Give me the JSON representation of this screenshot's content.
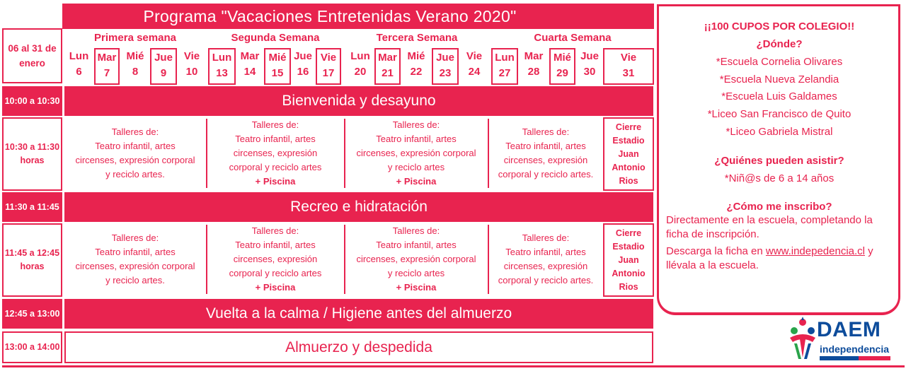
{
  "title": "Programa  \"Vacaciones Entretenidas Verano 2020\"",
  "date_range": "06 al 31 de enero",
  "weeks": [
    "Primera semana",
    "Segunda  Semana",
    "Tercera  Semana",
    "Cuarta Semana"
  ],
  "days": [
    {
      "name": "Lun",
      "num": "6"
    },
    {
      "name": "Mar",
      "num": "7"
    },
    {
      "name": "Mié",
      "num": "8"
    },
    {
      "name": "Jue",
      "num": "9"
    },
    {
      "name": "Vie",
      "num": "10"
    },
    {
      "name": "Lun",
      "num": "13"
    },
    {
      "name": "Mar",
      "num": "14"
    },
    {
      "name": "Mié",
      "num": "15"
    },
    {
      "name": "Jue",
      "num": "16"
    },
    {
      "name": "Vie",
      "num": "17"
    },
    {
      "name": "Lun",
      "num": "20"
    },
    {
      "name": "Mar",
      "num": "21"
    },
    {
      "name": "Mié",
      "num": "22"
    },
    {
      "name": "Jue",
      "num": "23"
    },
    {
      "name": "Vie",
      "num": "24"
    },
    {
      "name": "Lun",
      "num": "27"
    },
    {
      "name": "Mar",
      "num": "28"
    },
    {
      "name": "Mié",
      "num": "29"
    },
    {
      "name": "Jue",
      "num": "30"
    },
    {
      "name": "Vie",
      "num": "31"
    }
  ],
  "times": {
    "t1": "10:00 a 10:30",
    "t2": "10:30 a 11:30 horas",
    "t3": "11:30 a 11:45",
    "t4": "11:45 a 12:45 horas",
    "t5": "12:45 a 13:00",
    "t6": "13:00 a 14:00"
  },
  "bands": {
    "breakfast": "Bienvenida y desayuno",
    "recess": "Recreo e hidratación",
    "calm": "Vuelta a la calma / Higiene antes del almuerzo",
    "lunch": "Almuerzo y despedida"
  },
  "workshops": {
    "w1_l1": "Talleres  de:",
    "w1_l2": "Teatro infantil, artes",
    "w1_l3": "circenses, expresión corporal",
    "w1_l4": "y reciclo artes.",
    "w2_l1": "Talleres de:",
    "w2_l2": "Teatro infantil, artes",
    "w2_l3": "circenses, expresión",
    "w2_l4": "corporal y reciclo artes",
    "w2_extra": "+ Piscina",
    "w3_l1": "Talleres de:",
    "w3_l2": "Teatro infantil, artes",
    "w3_l3": "circenses, expresión corporal",
    "w3_l4": "y reciclo artes",
    "w3_extra": "+ Piscina",
    "w4_l1": "Talleres de:",
    "w4_l2": "Teatro infantil, artes",
    "w4_l3": "circenses, expresión",
    "w4_l4": "corporal y reciclo artes.",
    "w2b_l1": "Talleres  de:",
    "w2b_l2": "Teatro infantil, artes",
    "w2b_l3": "circenses, expresión",
    "w2b_l4": "corporal y reciclo artes",
    "w4b_l1": "Talleres de:",
    "w4b_l2": "Teatro infantil, artes",
    "w4b_l3": "circenses, expresión",
    "w4b_l4": "corporal y reciclo artes."
  },
  "closing": [
    "Cierre",
    "Estadio",
    "Juan",
    "Antonio",
    "Rios"
  ],
  "panel": {
    "cupos": "¡¡100 CUPOS POR COLEGIO!!",
    "where_q": "¿Dónde?",
    "schools": [
      "*Escuela Cornelia Olivares",
      "*Escuela Nueva  Zelandia",
      "*Escuela Luis Galdames",
      "*Liceo San Francisco de Quito",
      "*Liceo Gabriela Mistral"
    ],
    "who_q": "¿Quiénes pueden asistir?",
    "who_a": "*Niñ@s de 6 a 14 años",
    "how_q": "¿Cómo me inscribo?",
    "how_a1": "Directamente en la escuela,  completando la ficha de inscripción.",
    "how_a2_pre": "Descarga la ficha en ",
    "how_link": "www.indepedencia.cl",
    "how_a2_post": " y llévala a la escuela."
  },
  "logo": {
    "name": "DAEM",
    "sub": "independencia"
  },
  "colors": {
    "accent": "#e8234f",
    "logo_blue": "#0d4c9b"
  }
}
